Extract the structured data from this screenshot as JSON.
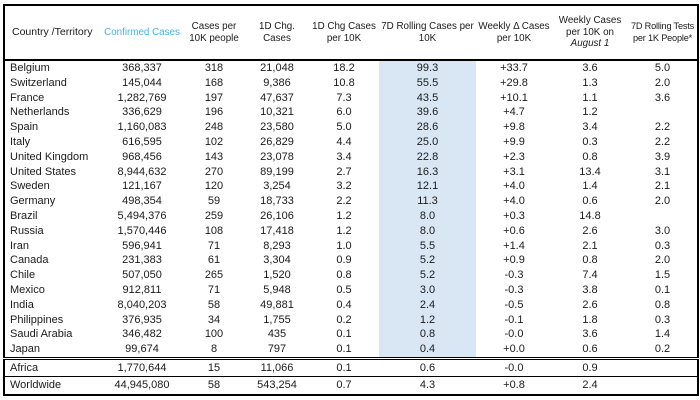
{
  "colors": {
    "accent_header": "#45b4e8",
    "highlight_column": "#d9e7f5",
    "border": "#000000",
    "text": "#1b1b1b"
  },
  "chart_data": {
    "type": "table",
    "title": "",
    "highlighted_column": "7D Rolling Cases per 10K",
    "accent_column": "Confirmed Cases",
    "columns": [
      {
        "label": "Country /Territory"
      },
      {
        "label": "Confirmed Cases",
        "accent": true
      },
      {
        "label": "Cases per 10K people"
      },
      {
        "label": "1D Chg. Cases"
      },
      {
        "label": "1D Chg Cases per 10K"
      },
      {
        "label": "7D Rolling Cases per 10K",
        "highlight": true
      },
      {
        "label": "Weekly Δ Cases per 10K"
      },
      {
        "label": "Weekly Cases per 10K on August 1",
        "italic_part": "August 1"
      },
      {
        "label": "7D Rolling Tests per 1K People*"
      }
    ],
    "rows": [
      [
        "Belgium",
        "368,337",
        "318",
        "21,048",
        "18.2",
        "99.3",
        "+33.7",
        "3.6",
        "5.0"
      ],
      [
        "Switzerland",
        "145,044",
        "168",
        "9,386",
        "10.8",
        "55.5",
        "+29.8",
        "1.3",
        "2.0"
      ],
      [
        "France",
        "1,282,769",
        "197",
        "47,637",
        "7.3",
        "43.5",
        "+10.1",
        "1.1",
        "3.6"
      ],
      [
        "Netherlands",
        "336,629",
        "196",
        "10,321",
        "6.0",
        "39.6",
        "+4.7",
        "1.2",
        ""
      ],
      [
        "Spain",
        "1,160,083",
        "248",
        "23,580",
        "5.0",
        "28.6",
        "+9.8",
        "3.4",
        "2.2"
      ],
      [
        "Italy",
        "616,595",
        "102",
        "26,829",
        "4.4",
        "25.0",
        "+9.9",
        "0.3",
        "2.2"
      ],
      [
        "United Kingdom",
        "968,456",
        "143",
        "23,078",
        "3.4",
        "22.8",
        "+2.3",
        "0.8",
        "3.9"
      ],
      [
        "United States",
        "8,944,632",
        "270",
        "89,199",
        "2.7",
        "16.3",
        "+3.1",
        "13.4",
        "3.1"
      ],
      [
        "Sweden",
        "121,167",
        "120",
        "3,254",
        "3.2",
        "12.1",
        "+4.0",
        "1.4",
        "2.1"
      ],
      [
        "Germany",
        "498,354",
        "59",
        "18,733",
        "2.2",
        "11.3",
        "+4.0",
        "0.6",
        "2.0"
      ],
      [
        "Brazil",
        "5,494,376",
        "259",
        "26,106",
        "1.2",
        "8.0",
        "+0.3",
        "14.8",
        ""
      ],
      [
        "Russia",
        "1,570,446",
        "108",
        "17,418",
        "1.2",
        "8.0",
        "+0.6",
        "2.6",
        "3.0"
      ],
      [
        "Iran",
        "596,941",
        "71",
        "8,293",
        "1.0",
        "5.5",
        "+1.4",
        "2.1",
        "0.3"
      ],
      [
        "Canada",
        "231,383",
        "61",
        "3,304",
        "0.9",
        "5.2",
        "+0.9",
        "0.8",
        "2.0"
      ],
      [
        "Chile",
        "507,050",
        "265",
        "1,520",
        "0.8",
        "5.2",
        "-0.3",
        "7.4",
        "1.5"
      ],
      [
        "Mexico",
        "912,811",
        "71",
        "5,948",
        "0.5",
        "3.0",
        "-0.3",
        "3.8",
        "0.1"
      ],
      [
        "India",
        "8,040,203",
        "58",
        "49,881",
        "0.4",
        "2.4",
        "-0.5",
        "2.6",
        "0.8"
      ],
      [
        "Philippines",
        "376,935",
        "34",
        "1,755",
        "0.2",
        "1.2",
        "-0.1",
        "1.8",
        "0.3"
      ],
      [
        "Saudi Arabia",
        "346,482",
        "100",
        "435",
        "0.1",
        "0.8",
        "-0.0",
        "3.6",
        "1.4"
      ],
      [
        "Japan",
        "99,674",
        "8",
        "797",
        "0.1",
        "0.4",
        "+0.0",
        "0.6",
        "0.2"
      ]
    ],
    "summary_rows": [
      [
        "Africa",
        "1,770,644",
        "15",
        "11,066",
        "0.1",
        "0.6",
        "-0.0",
        "0.9",
        ""
      ],
      [
        "Worldwide",
        "44,945,080",
        "58",
        "543,254",
        "0.7",
        "4.3",
        "+0.8",
        "2.4",
        ""
      ]
    ]
  }
}
